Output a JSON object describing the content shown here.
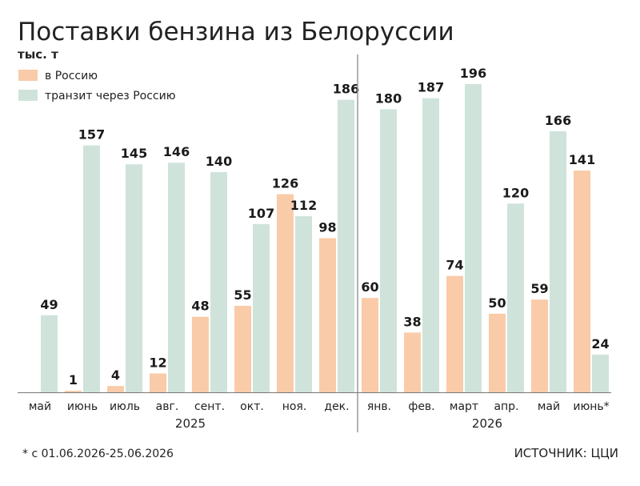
{
  "chart_data": {
    "type": "bar",
    "title": "Поставки бензина из Белоруссии",
    "unit": "тыс. т",
    "categories": [
      "май",
      "июнь",
      "июль",
      "авг.",
      "сент.",
      "окт.",
      "ноя.",
      "дек.",
      "янв.",
      "фев.",
      "март",
      "апр.",
      "май",
      "июнь*"
    ],
    "years": [
      {
        "label": "2025",
        "from": 0,
        "to": 7
      },
      {
        "label": "2026",
        "from": 8,
        "to": 13
      }
    ],
    "series": [
      {
        "name": "в Россию",
        "color": "#f9cba8",
        "values": [
          null,
          1,
          4,
          12,
          48,
          55,
          126,
          98,
          60,
          38,
          74,
          50,
          59,
          141
        ]
      },
      {
        "name": "транзит через Россию",
        "color": "#cfe3da",
        "values": [
          49,
          157,
          145,
          146,
          140,
          107,
          112,
          186,
          180,
          187,
          196,
          120,
          166,
          24
        ]
      }
    ],
    "ylim": [
      0,
      196
    ],
    "legend": "top-left",
    "grid": false
  },
  "footnote": "* с 01.06.2026-25.06.2026",
  "source": "ИСТОЧНИК: ЦЦИ"
}
